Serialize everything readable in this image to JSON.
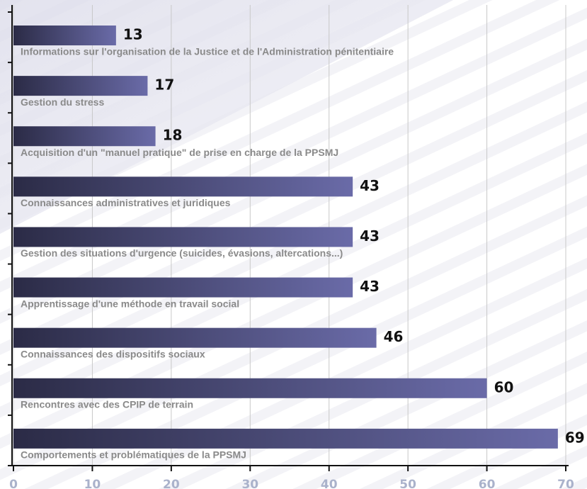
{
  "chart_data": {
    "type": "bar",
    "orientation": "horizontal",
    "categories": [
      "Informations sur l'organisation de la Justice et de l'Administration  pénitentiaire",
      "Gestion du stress",
      "Acquisition d'un \"manuel pratique\" de prise en charge de la PPSMJ",
      "Connaissances administratives et juridiques",
      "Gestion des situations d'urgence (suicides, évasions, altercations...)",
      "Apprentissage d'une méthode en travail social",
      "Connaissances des dispositifs sociaux",
      "Rencontres avec des CPIP de terrain",
      "Comportements et problématiques de la PPSMJ"
    ],
    "values": [
      13,
      17,
      18,
      43,
      43,
      43,
      46,
      60,
      69
    ],
    "color": [
      "#2b2b46",
      "#6a6ba8"
    ],
    "xlim": [
      0,
      70
    ],
    "xticks": [
      0,
      10,
      20,
      30,
      40,
      50,
      60,
      70
    ],
    "grid": true
  }
}
